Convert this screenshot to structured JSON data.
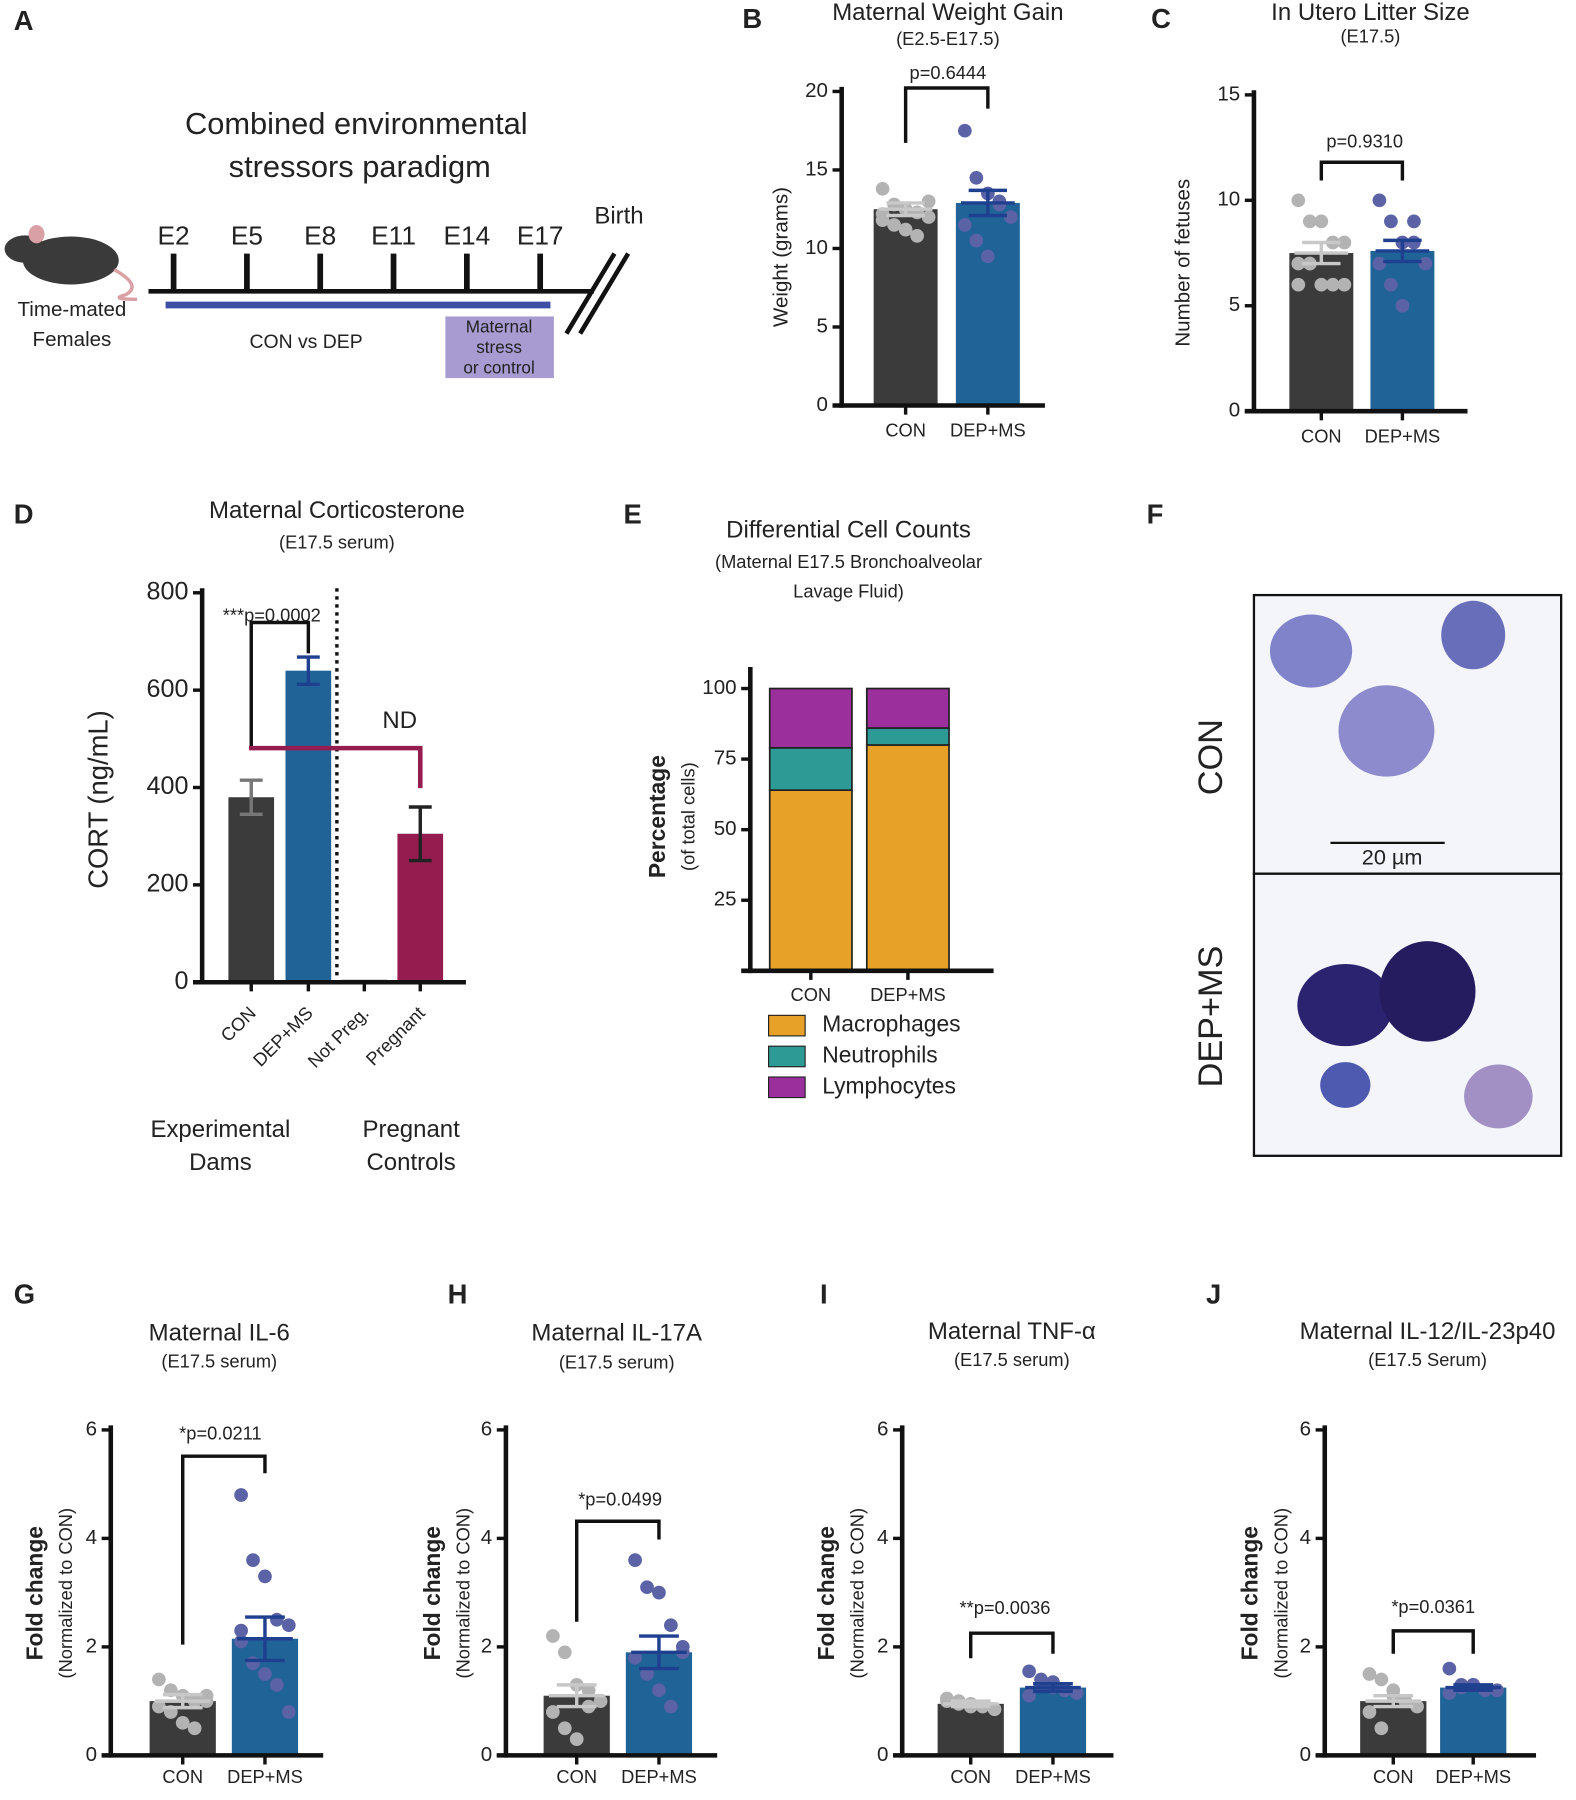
{
  "panel_labels": [
    "A",
    "B",
    "C",
    "D",
    "E",
    "F",
    "G",
    "H",
    "I",
    "J"
  ],
  "diagram": {
    "title_lines": [
      "Combined environmental",
      "stressors paradigm"
    ],
    "timepoints": [
      "E2",
      "E5",
      "E8",
      "E11",
      "E14",
      "E17"
    ],
    "end_label": "Birth",
    "animal_label": [
      "Time-mated",
      "Females"
    ],
    "bar_label": "CON vs DEP",
    "box_label": [
      "Maternal",
      "stress",
      "or control"
    ]
  },
  "micrograph": {
    "top_label": "CON",
    "bottom_label": "DEP+MS",
    "scale_label": "20 µm"
  },
  "chart_data": [
    {
      "type": "bar",
      "title": "Maternal Weight Gain",
      "subtitle": "(E2.5-E17.5)",
      "ylabel": "Weight  (grams)",
      "categories": [
        "CON",
        "DEP+MS"
      ],
      "values": [
        12.5,
        12.9
      ],
      "errors": [
        0.4,
        0.8
      ],
      "points": [
        [
          13.8,
          12.8,
          12.5,
          12.3,
          12.0,
          11.8,
          11.5,
          11.2,
          10.8,
          13.0,
          12.2
        ],
        [
          17.5,
          14.5,
          13.5,
          12.8,
          12.0,
          11.5,
          10.5,
          9.5,
          13.0
        ]
      ],
      "colors": [
        "#3b3b3b",
        "#1f6397"
      ],
      "point_colors": [
        "#b3b3b3",
        "#5b62a6"
      ],
      "error_colors": [
        "#c8c8c8",
        "#1f3f8f"
      ],
      "p_label": "p=0.6444",
      "ylim": [
        0,
        20
      ],
      "yticks": [
        0,
        5,
        10,
        15,
        20
      ]
    },
    {
      "type": "bar",
      "title": "In Utero Litter Size",
      "subtitle": "(E17.5)",
      "ylabel": "Number of fetuses",
      "categories": [
        "CON",
        "DEP+MS"
      ],
      "values": [
        7.5,
        7.6
      ],
      "errors": [
        0.5,
        0.5
      ],
      "points": [
        [
          10,
          9,
          9,
          8,
          8,
          7,
          7,
          6,
          6,
          6,
          6,
          7
        ],
        [
          10,
          9,
          8,
          8,
          7,
          7,
          6,
          5,
          9
        ]
      ],
      "colors": [
        "#3b3b3b",
        "#1f6397"
      ],
      "point_colors": [
        "#b3b3b3",
        "#5b62a6"
      ],
      "error_colors": [
        "#c8c8c8",
        "#1f3f8f"
      ],
      "p_label": "p=0.9310",
      "ylim": [
        0,
        15
      ],
      "yticks": [
        0,
        5,
        10,
        15
      ]
    },
    {
      "type": "bar",
      "title": "Maternal Corticosterone",
      "subtitle": "(E17.5 serum)",
      "ylabel": "CORT (ng/mL)",
      "categories": [
        "CON",
        "DEP+MS",
        "Not Preg.",
        "Pregnant"
      ],
      "values": [
        380,
        640,
        5,
        305
      ],
      "errors": [
        35,
        28,
        null,
        55
      ],
      "colors": [
        "#3b3b3b",
        "#1f6397",
        "#3b3b3b",
        "#941c4f"
      ],
      "error_colors": [
        "#777777",
        "#1f3f8f",
        "#333333",
        "#222222"
      ],
      "p_label": "***p=0.0002",
      "nd_label": "ND",
      "groups": [
        [
          "Experimental",
          "Dams"
        ],
        [
          "Pregnant",
          "Controls"
        ]
      ],
      "ylim": [
        0,
        800
      ],
      "yticks": [
        0,
        200,
        400,
        600,
        800
      ]
    },
    {
      "type": "stacked_bar",
      "title": "Differential Cell Counts",
      "subtitle": [
        "(Maternal E17.5 Bronchoalveolar",
        "Lavage Fluid)"
      ],
      "ylabel": [
        "Percentage",
        "(of total cells)"
      ],
      "categories": [
        "CON",
        "DEP+MS"
      ],
      "series": [
        {
          "name": "Macrophages",
          "color": "#e8a128",
          "values": [
            64,
            80
          ]
        },
        {
          "name": "Neutrophils",
          "color": "#2e9a96",
          "values": [
            15,
            6
          ]
        },
        {
          "name": "Lymphocytes",
          "color": "#9b2f9b",
          "values": [
            21,
            14
          ]
        }
      ],
      "ylim": [
        0,
        106
      ],
      "yticks": [
        25,
        50,
        75,
        100
      ]
    },
    {
      "type": "bar",
      "title": "Maternal IL-6",
      "subtitle": "(E17.5 serum)",
      "ylabel": [
        "Fold change",
        "(Normalized to CON)"
      ],
      "categories": [
        "CON",
        "DEP+MS"
      ],
      "values": [
        1.0,
        2.15
      ],
      "errors": [
        0.12,
        0.4
      ],
      "points": [
        [
          1.4,
          1.2,
          1.1,
          1.0,
          1.0,
          0.9,
          0.8,
          0.6,
          0.5,
          1.1
        ],
        [
          4.8,
          3.6,
          3.3,
          2.5,
          2.4,
          2.1,
          1.7,
          1.5,
          1.3,
          0.8,
          2.3
        ]
      ],
      "colors": [
        "#3b3b3b",
        "#1f6397"
      ],
      "point_colors": [
        "#b3b3b3",
        "#5b62a6"
      ],
      "error_colors": [
        "#c8c8c8",
        "#1f3f8f"
      ],
      "p_label": "*p=0.0211",
      "ylim": [
        0,
        6
      ],
      "yticks": [
        0,
        2,
        4,
        6
      ]
    },
    {
      "type": "bar",
      "title": "Maternal IL-17A",
      "subtitle": "(E17.5 serum)",
      "ylabel": [
        "Fold change",
        "(Normalized to CON)"
      ],
      "categories": [
        "CON",
        "DEP+MS"
      ],
      "values": [
        1.1,
        1.9
      ],
      "errors": [
        0.2,
        0.3
      ],
      "points": [
        [
          2.2,
          1.9,
          1.3,
          1.2,
          1.0,
          0.8,
          0.5,
          0.3,
          0.9
        ],
        [
          3.6,
          3.1,
          3.0,
          2.4,
          1.9,
          1.8,
          1.5,
          1.2,
          0.9,
          2.0
        ]
      ],
      "colors": [
        "#3b3b3b",
        "#1f6397"
      ],
      "point_colors": [
        "#b3b3b3",
        "#5b62a6"
      ],
      "error_colors": [
        "#c8c8c8",
        "#1f3f8f"
      ],
      "p_label": "*p=0.0499",
      "ylim": [
        0,
        6
      ],
      "yticks": [
        0,
        2,
        4,
        6
      ]
    },
    {
      "type": "bar",
      "title": "Maternal TNF-α",
      "subtitle": "(E17.5 serum)",
      "ylabel": [
        "Fold change",
        "(Normalized to CON)"
      ],
      "categories": [
        "CON",
        "DEP+MS"
      ],
      "values": [
        0.95,
        1.25
      ],
      "errors": [
        0.05,
        0.07
      ],
      "points": [
        [
          1.05,
          1.0,
          0.95,
          0.9,
          0.85,
          1.0,
          0.95,
          0.9
        ],
        [
          1.55,
          1.4,
          1.35,
          1.2,
          1.15,
          1.1,
          1.3,
          1.25,
          1.2
        ]
      ],
      "colors": [
        "#3b3b3b",
        "#1f6397"
      ],
      "point_colors": [
        "#b3b3b3",
        "#5b62a6"
      ],
      "error_colors": [
        "#c8c8c8",
        "#1f3f8f"
      ],
      "p_label": "**p=0.0036",
      "ylim": [
        0,
        6
      ],
      "yticks": [
        0,
        2,
        4,
        6
      ]
    },
    {
      "type": "bar",
      "title": "Maternal IL-12/IL-23p40",
      "subtitle": "(E17.5 Serum)",
      "ylabel": [
        "Fold change",
        "(Normalized to CON)"
      ],
      "categories": [
        "CON",
        "DEP+MS"
      ],
      "values": [
        1.0,
        1.25
      ],
      "errors": [
        0.1,
        0.05
      ],
      "points": [
        [
          1.5,
          1.4,
          1.2,
          1.0,
          0.9,
          0.8,
          0.5,
          1.1
        ],
        [
          1.6,
          1.3,
          1.3,
          1.2,
          1.2,
          1.15,
          1.25,
          1.3
        ]
      ],
      "colors": [
        "#3b3b3b",
        "#1f6397"
      ],
      "point_colors": [
        "#b3b3b3",
        "#5b62a6"
      ],
      "error_colors": [
        "#c8c8c8",
        "#1f3f8f"
      ],
      "p_label": "*p=0.0361",
      "ylim": [
        0,
        6
      ],
      "yticks": [
        0,
        2,
        4,
        6
      ]
    }
  ]
}
